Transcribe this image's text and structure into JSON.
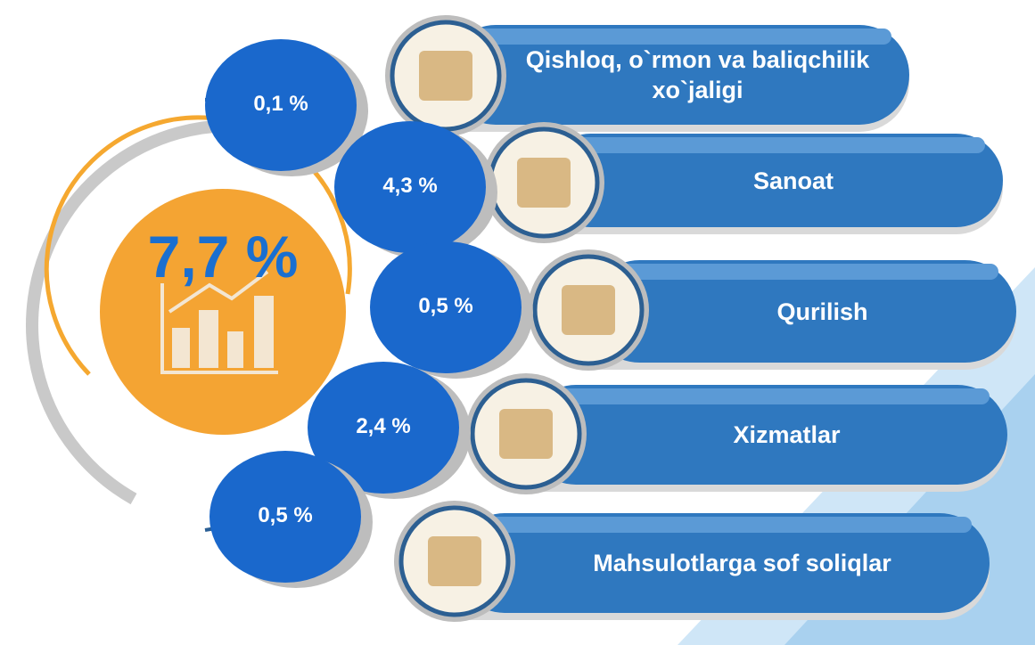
{
  "total": "7,7 %",
  "items": [
    {
      "value": "0,1 %",
      "label": "Qishloq, o`rmon va baliqchilik xo`jaligi"
    },
    {
      "value": "4,3 %",
      "label": "Sanoat"
    },
    {
      "value": "0,5 %",
      "label": "Qurilish"
    },
    {
      "value": "2,4 %",
      "label": "Xizmatlar"
    },
    {
      "value": "0,5 %",
      "label": "Mahsulotlarga sof soliqlar"
    }
  ]
}
